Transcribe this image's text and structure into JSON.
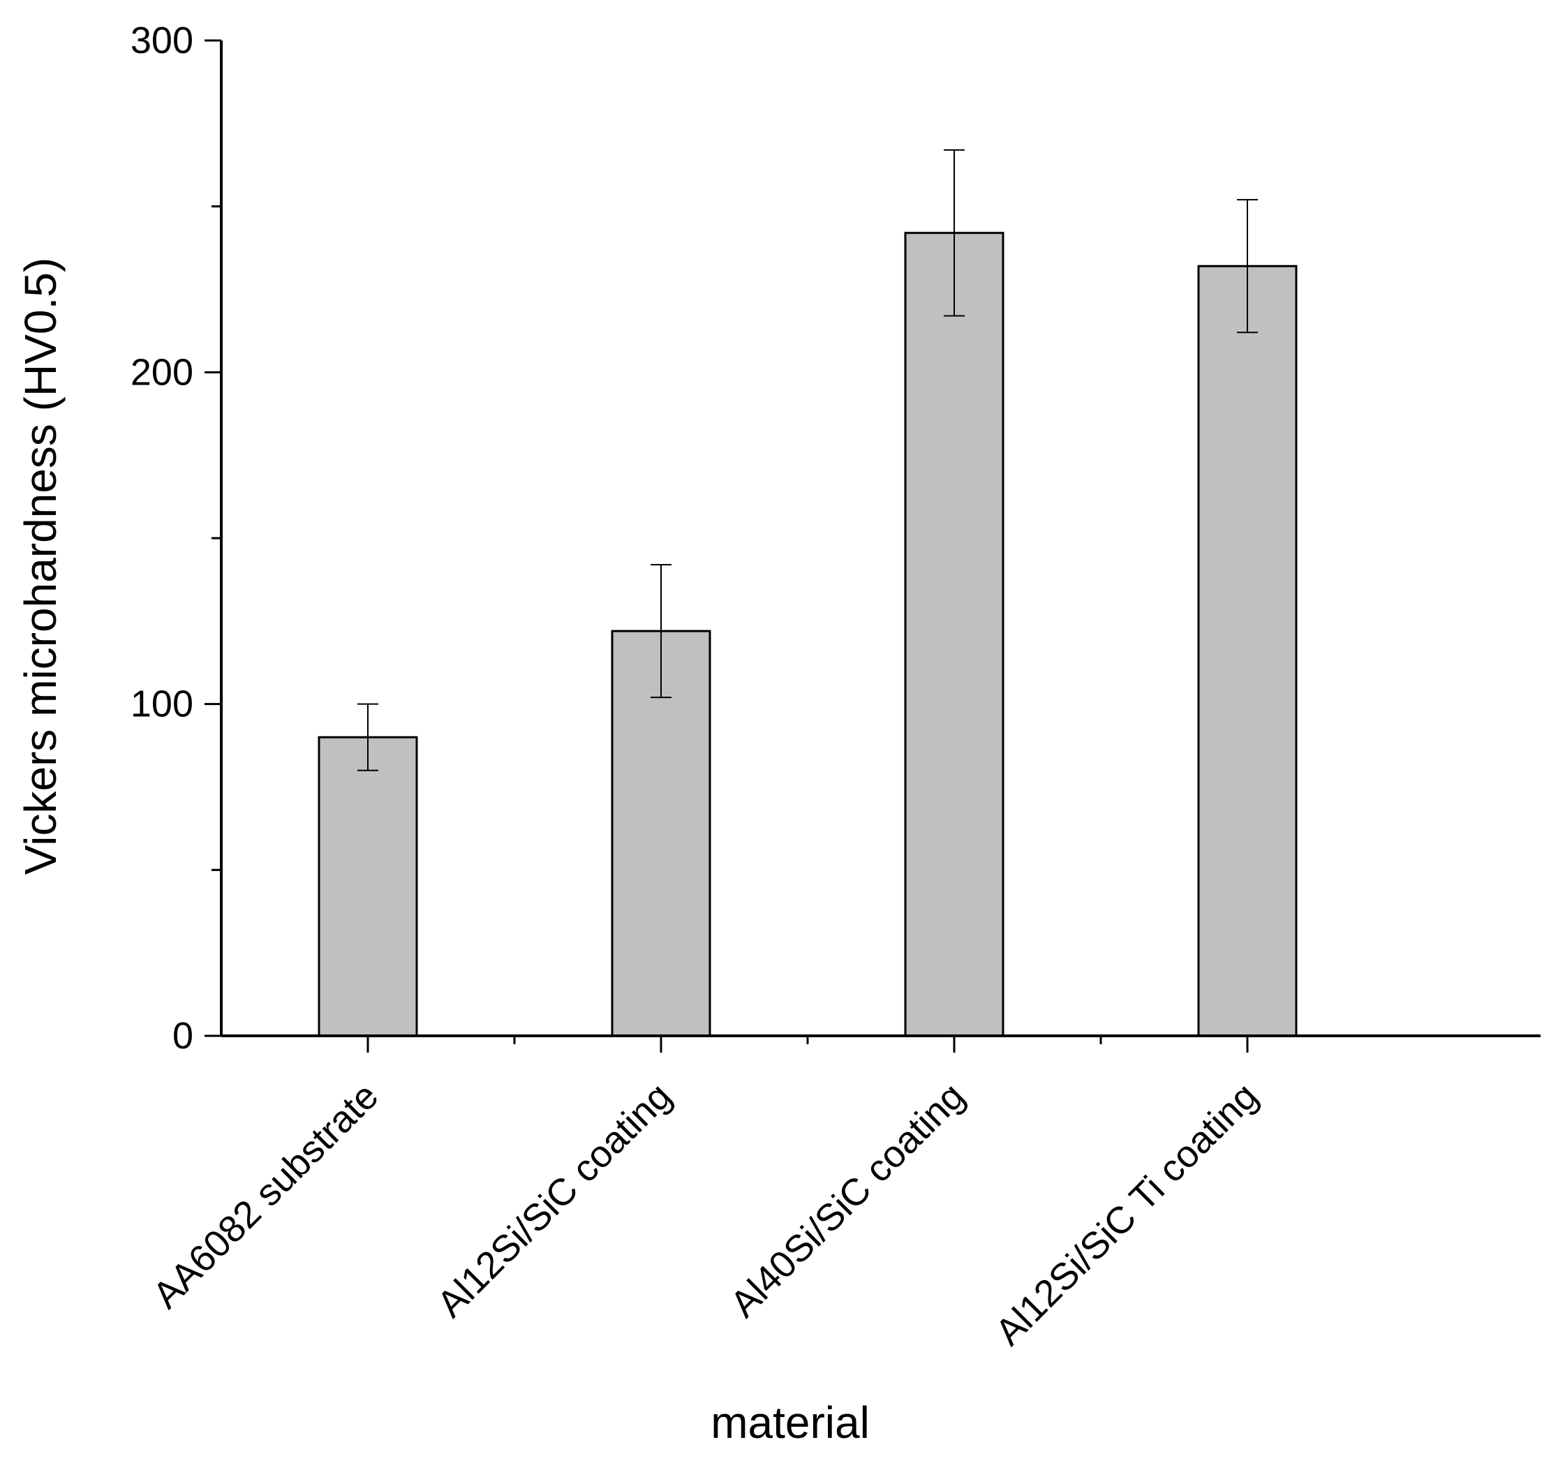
{
  "chart_data": {
    "type": "bar",
    "title": "",
    "xlabel": "material",
    "ylabel": "Vickers microhardness (HV0.5)",
    "categories": [
      "AA6082 substrate",
      "Al12Si/SiC coating",
      "Al40Si/SiC coating",
      "Al12Si/SiC Ti coating"
    ],
    "values": [
      90,
      122,
      242,
      232
    ],
    "errors": [
      10,
      20,
      25,
      20
    ],
    "ylim": [
      0,
      300
    ],
    "yticks": [
      0,
      100,
      200,
      300
    ],
    "yminor_ticks": [
      50,
      150,
      250
    ],
    "grid": false,
    "bar_color": "#c0c0c0"
  }
}
